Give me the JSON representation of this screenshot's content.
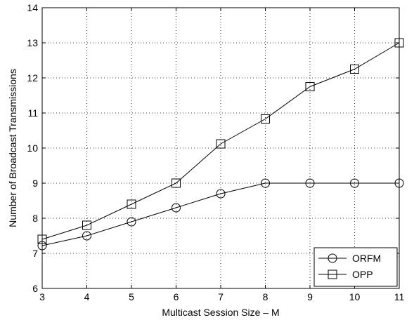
{
  "chart_data": {
    "type": "line",
    "xlabel": "Multicast Session Size – M",
    "ylabel": "Number of Broadcast Transmissions",
    "xlim": [
      3,
      11
    ],
    "ylim": [
      6,
      14
    ],
    "x_ticks": [
      3,
      4,
      5,
      6,
      7,
      8,
      9,
      10,
      11
    ],
    "y_ticks": [
      6,
      7,
      8,
      9,
      10,
      11,
      12,
      13,
      14
    ],
    "grid": true,
    "legend_position": "bottom-right",
    "x": [
      3,
      4,
      5,
      6,
      7,
      8,
      9,
      10,
      11
    ],
    "series": [
      {
        "name": "ORFM",
        "marker": "circle",
        "color": "#000000",
        "values": [
          7.22,
          7.5,
          7.9,
          8.3,
          8.7,
          9.0,
          9.0,
          9.0,
          9.0
        ]
      },
      {
        "name": "OPP",
        "marker": "square",
        "color": "#000000",
        "values": [
          7.4,
          7.8,
          8.4,
          9.0,
          10.12,
          10.83,
          11.75,
          12.25,
          13.0
        ]
      }
    ]
  }
}
